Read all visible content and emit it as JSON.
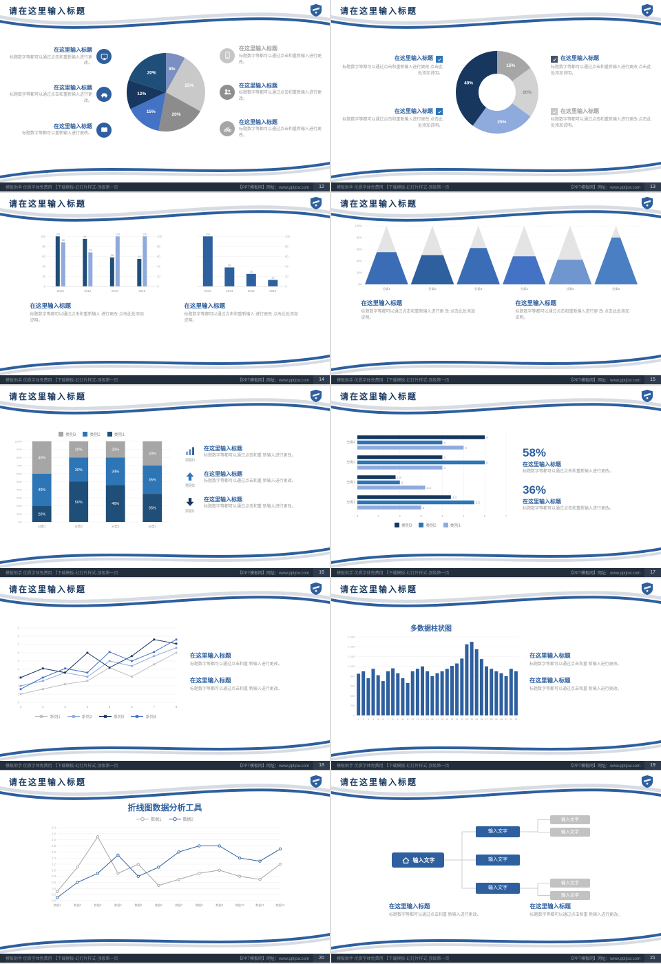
{
  "theme": {
    "accent": "#2e5f9e",
    "navy": "#17375e",
    "blue": "#2e75b6",
    "steel": "#4472c4",
    "light_blue": "#8faadc",
    "gray": "#a6a6a6",
    "light_gray": "#d9d9d9",
    "footer_bg": "#232e3c"
  },
  "common": {
    "slide_title": "请在这里输入标题",
    "footer_left": "模板助手 优质字体免费用 【下载模板-幻灯片样式-顶级第一页",
    "footer_right": "【PPT模板网】网址：www.pptjcw.com"
  },
  "slides": [
    {
      "page_number": "12",
      "type": "pie_callouts",
      "left_items": [
        {
          "icon": "monitor",
          "icon_bg": "#2e5f9e",
          "title": "在这里输入标题",
          "text": "标题数字等都可以通过点击和重新输入进行更改。",
          "muted": false
        },
        {
          "icon": "car",
          "icon_bg": "#2e5f9e",
          "title": "在这里输入标题",
          "text": "标题数字等都可以通过点击和重新输入进行更改。",
          "muted": false
        },
        {
          "icon": "book",
          "icon_bg": "#2e5f9e",
          "title": "在这里输入标题",
          "text": "标题数字等都可以重新输入进行更改。",
          "muted": false
        }
      ],
      "right_items": [
        {
          "icon": "phone",
          "icon_bg": "#c6c6c6",
          "title": "在这里输入标题",
          "text": "标题数字等都可以通过点击和重新输入进行更改。",
          "muted": true
        },
        {
          "icon": "people",
          "icon_bg": "#8f8f8f",
          "title": "在这里输入标题",
          "text": "标题数字等都可以通过点击和重新输入进行更改。",
          "muted": false
        },
        {
          "icon": "bike",
          "icon_bg": "#a6a6a6",
          "title": "在这里输入标题",
          "text": "标题数字等都可以通过点击和重新输入进行更改。",
          "muted": false
        }
      ],
      "chart": {
        "type": "pie",
        "labels": [
          "8%",
          "25%",
          "20%",
          "15%",
          "12%",
          "20%"
        ],
        "values": [
          8,
          25,
          20,
          15,
          12,
          20
        ],
        "colors": [
          "#7b8fc0",
          "#c9c9c9",
          "#8c8c8c",
          "#4472c4",
          "#17375e",
          "#1f4e79"
        ],
        "label_colors": [
          "#ffffff",
          "#ffffff",
          "#ffffff",
          "#ffffff",
          "#ffffff",
          "#ffffff"
        ]
      }
    },
    {
      "page_number": "13",
      "type": "donut_checklist",
      "left_items": [
        {
          "title": "在这里输入标题",
          "text": "标题数字等都可以通过点击和重新输入进行更改 点击此处添加说明。",
          "check_bg": "#2e75b6",
          "muted": false
        },
        {
          "title": "在这里输入标题",
          "text": "标题数字等都可以通过点击和重新输入进行更改 点击此处添加说明。",
          "check_bg": "#2e75b6",
          "muted": false
        }
      ],
      "right_items": [
        {
          "title": "在这里输入标题",
          "text": "标题数字等都可以通过点击和重新输入进行更改 点击此处添加说明。",
          "check_bg": "#44546a",
          "muted": false
        },
        {
          "title": "在这里输入标题",
          "text": "标题数字等都可以通过点击和重新输入进行更改 点击此处添加说明。",
          "check_bg": "#c9c9c9",
          "muted": true
        }
      ],
      "chart": {
        "type": "donut",
        "labels": [
          "15%",
          "20%",
          "25%",
          "40%"
        ],
        "values": [
          15,
          20,
          25,
          40
        ],
        "colors": [
          "#a6a6a6",
          "#d2d2d2",
          "#8faadc",
          "#17375e"
        ],
        "label_colors": [
          "#ffffff",
          "#8a8a8a",
          "#ffffff",
          "#ffffff"
        ]
      }
    },
    {
      "page_number": "14",
      "type": "dual_bars",
      "chart_left": {
        "type": "bar",
        "categories": [
          "2010",
          "2012",
          "2014",
          "2016"
        ],
        "series": [
          {
            "name": "系列1",
            "color": "#1f4e79",
            "values": [
              100,
              95,
              58,
              55
            ]
          },
          {
            "name": "系列2",
            "color": "#8faadc",
            "values": [
              88,
              68,
              100,
              100
            ]
          }
        ],
        "ylim": [
          0,
          110
        ]
      },
      "chart_right": {
        "type": "bar",
        "categories": [
          "2016",
          "2014",
          "2012",
          "2010"
        ],
        "series": [
          {
            "name": "系列1",
            "color": "#2e5f9e",
            "values": [
              100,
              38,
              25,
              13
            ]
          }
        ],
        "ylim": [
          0,
          110
        ]
      },
      "blocks": [
        {
          "title": "在这里输入标题",
          "text": "标题数字等都可以通过点击和重新输入 进行更改 点击此处添加说明。"
        },
        {
          "title": "在这里输入标题",
          "text": "标题数字等都可以通过点击和重新输入 进行更改 点击此处添加说明。"
        }
      ]
    },
    {
      "page_number": "15",
      "type": "pyramid",
      "chart": {
        "type": "pyramid",
        "categories": [
          "分类1",
          "分类2",
          "分类3",
          "分类4",
          "分类5",
          "分类6"
        ],
        "fill_percent": [
          55,
          50,
          62,
          48,
          42,
          80
        ],
        "fill_colors": [
          "#3a6db5",
          "#2e5f9e",
          "#3a6db5",
          "#4472c4",
          "#6f96cf",
          "#4b7fc4"
        ],
        "ylim": [
          0,
          100
        ]
      },
      "blocks": [
        {
          "title": "在这里输入标题",
          "text": "标题数字等都可以通过点击和重新输入进行更 改 点击此处添加说明。"
        },
        {
          "title": "在这里输入标题",
          "text": "标题数字等都可以通过点击和重新输入进行更 改 点击此处添加说明。"
        }
      ]
    },
    {
      "page_number": "16",
      "type": "stacked_bars",
      "legend": [
        {
          "label": "类别3",
          "color": "#a6a6a6"
        },
        {
          "label": "类别2",
          "color": "#2e75b6"
        },
        {
          "label": "类别1",
          "color": "#1f4e79"
        }
      ],
      "chart": {
        "type": "stacked-bar",
        "categories": [
          "分类1",
          "分类2",
          "分类3",
          "分类4"
        ],
        "series": [
          {
            "name": "类别1",
            "color": "#1f4e79",
            "values": [
              20,
              50,
              46,
              35
            ]
          },
          {
            "name": "类别2",
            "color": "#2e75b6",
            "values": [
              40,
              30,
              34,
              35
            ]
          },
          {
            "name": "类别3",
            "color": "#a6a6a6",
            "values": [
              40,
              20,
              20,
              30
            ]
          }
        ],
        "y_ticks_percent": [
          0,
          10,
          20,
          30,
          40,
          50,
          60,
          70,
          80,
          90,
          100
        ]
      },
      "right_items": [
        {
          "icon": "chart-bars",
          "icon_label": "类别3",
          "title": "在这里输入标题",
          "text": "标题数字等都可以通过点击和重 新输入进行更改。"
        },
        {
          "icon": "arrow-up",
          "icon_label": "类别2",
          "title": "在这里输入标题",
          "text": "标题数字等都可以通过点击和重 新输入进行更改。"
        },
        {
          "icon": "arrow-down",
          "icon_label": "类别1",
          "title": "在这里输入标题",
          "text": "标题数字等都可以通过点击和重 新输入进行更改。"
        }
      ]
    },
    {
      "page_number": "17",
      "type": "hbars",
      "chart": {
        "type": "bar-horizontal",
        "categories": [
          "分类4",
          "分类3",
          "分类2",
          "分类1"
        ],
        "series": [
          {
            "name": "类别3",
            "color": "#17375e",
            "values": [
              6,
              4,
              1.8,
              4.4
            ]
          },
          {
            "name": "类别2",
            "color": "#2e75b6",
            "values": [
              4,
              6,
              2,
              5.5
            ]
          },
          {
            "name": "类别1",
            "color": "#8faadc",
            "values": [
              5,
              4,
              3.2,
              3
            ]
          }
        ],
        "xlim": [
          0,
          7
        ],
        "x_ticks": [
          0,
          1,
          2,
          3,
          4,
          5,
          6,
          7
        ]
      },
      "legend": [
        {
          "label": "类别3",
          "color": "#17375e"
        },
        {
          "label": "类别2",
          "color": "#2e75b6"
        },
        {
          "label": "类别1",
          "color": "#8faadc"
        }
      ],
      "stats": [
        {
          "value": "58%",
          "title": "在这里输入标题",
          "text": "标题数字等都可以通过点击和重新输入进行更改。"
        },
        {
          "value": "36%",
          "title": "在这里输入标题",
          "text": "标题数字等都可以通过点击和重新输入进行更改。"
        }
      ]
    },
    {
      "page_number": "18",
      "type": "multi_line",
      "chart": {
        "type": "line",
        "x_labels": [
          "1",
          "2",
          "3",
          "4",
          "5",
          "6",
          "7",
          "8"
        ],
        "series": [
          {
            "name": "系列1",
            "color": "#bfbfbf",
            "values": [
              1,
              1.6,
              2.2,
              2.6,
              4.2,
              3.1,
              4.6,
              6
            ]
          },
          {
            "name": "系列2",
            "color": "#8faadc",
            "values": [
              2,
              2.6,
              3.6,
              3.1,
              5,
              4.4,
              5.6,
              6.6
            ]
          },
          {
            "name": "系列3",
            "color": "#17375e",
            "values": [
              3,
              4.1,
              3.6,
              6,
              4.2,
              5.6,
              7.6,
              7.1
            ]
          },
          {
            "name": "系列4",
            "color": "#4472c4",
            "values": [
              1.6,
              3,
              4.1,
              3.6,
              6.1,
              5,
              6.1,
              7.6
            ]
          }
        ],
        "ylim": [
          0,
          9
        ]
      },
      "blocks": [
        {
          "title": "在这里输入标题",
          "text": "标题数字等都可以通过点击和重 新输入进行更改。"
        },
        {
          "title": "在这里输入标题",
          "text": "标题数字等都可以通过点击和重 新输入进行更改。"
        }
      ]
    },
    {
      "page_number": "19",
      "type": "columns",
      "chart": {
        "type": "bar",
        "title": "多数据柱状图",
        "categories": [
          "1",
          "2",
          "3",
          "4",
          "5",
          "6",
          "7",
          "8",
          "9",
          "10",
          "11",
          "12",
          "13",
          "14",
          "15",
          "16",
          "17",
          "18",
          "19",
          "20",
          "21",
          "22",
          "23",
          "24",
          "25",
          "26",
          "27",
          "28",
          "29",
          "30",
          "31",
          "32",
          "33"
        ],
        "values": [
          850,
          900,
          760,
          950,
          820,
          700,
          900,
          960,
          860,
          760,
          660,
          900,
          950,
          1000,
          900,
          800,
          860,
          900,
          950,
          1010,
          1060,
          1160,
          1450,
          1500,
          1350,
          1150,
          1000,
          950,
          900,
          860,
          800,
          950,
          900
        ],
        "ylim": [
          0,
          1600
        ],
        "y_ticks": [
          "0",
          "200",
          "400",
          "600",
          "800",
          "1,000",
          "1,200",
          "1,400",
          "1,600"
        ]
      },
      "blocks": [
        {
          "title": "在这里输入标题",
          "text": "标题数字等都可以通过点击和重 新输入进行更改。"
        },
        {
          "title": "在这里输入标题",
          "text": "标题数字等都可以通过点击和重 新输入进行更改。"
        }
      ]
    },
    {
      "page_number": "20",
      "type": "line_tool",
      "chart": {
        "type": "line",
        "title": "折线图数据分析工具",
        "x_labels": [
          "数据1",
          "数据2",
          "数据3",
          "数据4",
          "数据5",
          "数据6",
          "数据7",
          "数据8",
          "数据9",
          "数据10",
          "数据11",
          "数据12"
        ],
        "series": [
          {
            "name": "数据1",
            "color": "#a6a6a6",
            "values": [
              0.3,
              1.1,
              2.1,
              0.9,
              1.2,
              0.5,
              0.7,
              0.9,
              1.0,
              0.8,
              0.7,
              1.2
            ]
          },
          {
            "name": "数据2",
            "color": "#2e5f9e",
            "values": [
              0.1,
              0.6,
              0.9,
              1.5,
              0.8,
              1.1,
              1.6,
              1.8,
              1.8,
              1.4,
              1.3,
              1.7
            ]
          }
        ],
        "ylim": [
          0,
          2.4
        ],
        "y_step": 0.2
      }
    },
    {
      "page_number": "21",
      "type": "org_chart",
      "root": {
        "icon": "home",
        "label": "输入文字"
      },
      "nodes": [
        {
          "label": "输入文字",
          "children": [
            "输入文字",
            "输入文字"
          ]
        },
        {
          "label": "输入文字",
          "children": []
        },
        {
          "label": "输入文字",
          "children": [
            "输入文字",
            "输入文字"
          ]
        }
      ],
      "blocks": [
        {
          "title": "在这里输入标题",
          "text": "标题数字等都可以通过点击和重 新输入进行更改。"
        },
        {
          "title": "在这里输入标题",
          "text": "标题数字等都可以通过点击和重 新输入进行更改。"
        }
      ]
    }
  ]
}
